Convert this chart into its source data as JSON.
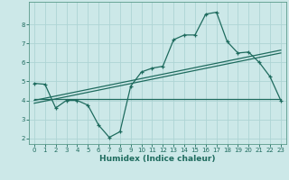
{
  "xlabel": "Humidex (Indice chaleur)",
  "bg_color": "#cce8e8",
  "grid_color": "#aed4d4",
  "line_color": "#1e6b5e",
  "spine_color": "#5a9a8a",
  "xlim": [
    -0.5,
    23.5
  ],
  "ylim": [
    1.7,
    9.2
  ],
  "yticks": [
    2,
    3,
    4,
    5,
    6,
    7,
    8
  ],
  "xticks": [
    0,
    1,
    2,
    3,
    4,
    5,
    6,
    7,
    8,
    9,
    10,
    11,
    12,
    13,
    14,
    15,
    16,
    17,
    18,
    19,
    20,
    21,
    22,
    23
  ],
  "curve1_x": [
    0,
    1,
    2,
    3,
    4,
    5,
    6,
    7,
    8,
    9,
    10,
    11,
    12,
    13,
    14,
    15,
    16,
    17,
    18,
    19,
    20,
    21,
    22,
    23
  ],
  "curve1_y": [
    4.9,
    4.85,
    3.6,
    4.0,
    4.0,
    3.75,
    2.7,
    2.05,
    2.35,
    4.75,
    5.5,
    5.7,
    5.8,
    7.2,
    7.45,
    7.45,
    8.55,
    8.65,
    7.1,
    6.5,
    6.55,
    6.0,
    5.25,
    4.0
  ],
  "curve2_x": [
    0,
    23
  ],
  "curve2_y": [
    4.05,
    4.05
  ],
  "curve3_x": [
    0,
    23
  ],
  "curve3_y": [
    3.85,
    6.5
  ],
  "curve4_x": [
    0,
    23
  ],
  "curve4_y": [
    4.0,
    6.65
  ],
  "tick_fontsize": 5.0,
  "xlabel_fontsize": 6.5,
  "linewidth": 0.9,
  "marker_size": 3.5
}
